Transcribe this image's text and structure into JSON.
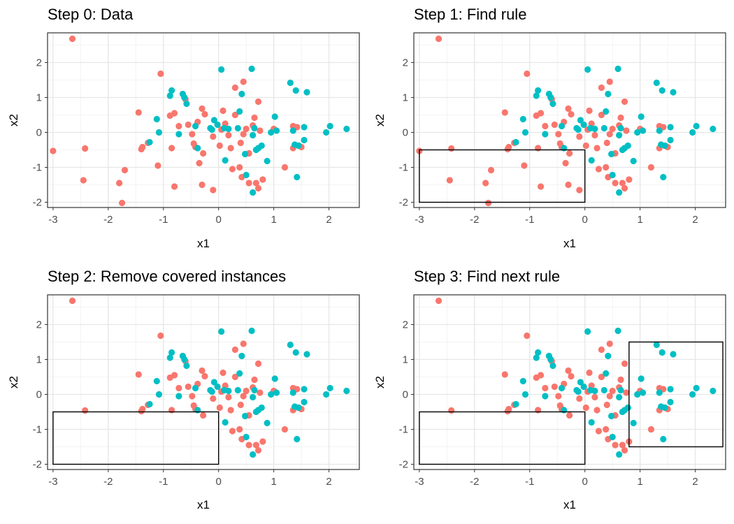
{
  "chart_data": [
    {
      "type": "scatter",
      "title": "Step 0: Data",
      "xlabel": "x1",
      "ylabel": "x2",
      "xlim": [
        -3.1,
        2.55
      ],
      "ylim": [
        -2.15,
        2.85
      ],
      "xticks": [
        -3,
        -2,
        -1,
        0,
        1,
        2
      ],
      "yticks": [
        -2,
        -1,
        0,
        1,
        2
      ],
      "grid": true,
      "rects": [],
      "show_removed": true
    },
    {
      "type": "scatter",
      "title": "Step 1: Find rule",
      "xlabel": "x1",
      "ylabel": "x2",
      "xlim": [
        -3.1,
        2.55
      ],
      "ylim": [
        -2.15,
        2.85
      ],
      "xticks": [
        -3,
        -2,
        -1,
        0,
        1,
        2
      ],
      "yticks": [
        -2,
        -1,
        0,
        1,
        2
      ],
      "grid": true,
      "rects": [
        {
          "x0": -3.0,
          "x1": 0.0,
          "y0": -2.0,
          "y1": -0.5
        }
      ],
      "show_removed": true
    },
    {
      "type": "scatter",
      "title": "Step 2: Remove covered instances",
      "xlabel": "x1",
      "ylabel": "x2",
      "xlim": [
        -3.1,
        2.55
      ],
      "ylim": [
        -2.15,
        2.85
      ],
      "xticks": [
        -3,
        -2,
        -1,
        0,
        1,
        2
      ],
      "yticks": [
        -2,
        -1,
        0,
        1,
        2
      ],
      "grid": true,
      "rects": [
        {
          "x0": -3.0,
          "x1": 0.0,
          "y0": -2.0,
          "y1": -0.5
        }
      ],
      "show_removed": false
    },
    {
      "type": "scatter",
      "title": "Step 3: Find next rule",
      "xlabel": "x1",
      "ylabel": "x2",
      "xlim": [
        -3.1,
        2.55
      ],
      "ylim": [
        -2.15,
        2.85
      ],
      "xticks": [
        -3,
        -2,
        -1,
        0,
        1,
        2
      ],
      "yticks": [
        -2,
        -1,
        0,
        1,
        2
      ],
      "grid": true,
      "rects": [
        {
          "x0": -3.0,
          "x1": 0.0,
          "y0": -2.0,
          "y1": -0.5
        },
        {
          "x0": 0.8,
          "x1": 2.5,
          "y0": -1.5,
          "y1": 1.5
        }
      ],
      "show_removed": false
    }
  ],
  "points": {
    "colors": {
      "salmon": "#f8766d",
      "teal": "#00bfc4"
    },
    "removed_salmon": [
      [
        -3.0,
        -0.53
      ],
      [
        -1.8,
        -1.45
      ],
      [
        -1.75,
        -2.02
      ],
      [
        -1.7,
        -1.08
      ],
      [
        -2.45,
        -1.37
      ],
      [
        -1.1,
        -0.95
      ],
      [
        -0.8,
        -1.55
      ],
      [
        -0.3,
        -1.5
      ],
      [
        -0.1,
        -1.65
      ],
      [
        -0.35,
        -0.88
      ]
    ],
    "salmon": [
      [
        -2.65,
        2.68
      ],
      [
        -2.42,
        -0.46
      ],
      [
        -1.45,
        0.57
      ],
      [
        -1.4,
        -0.48
      ],
      [
        -1.38,
        -0.42
      ],
      [
        -1.28,
        -0.3
      ],
      [
        -1.05,
        1.68
      ],
      [
        -0.88,
        0.48
      ],
      [
        -0.85,
        -0.45
      ],
      [
        -0.8,
        0.55
      ],
      [
        -0.72,
        0.18
      ],
      [
        -0.6,
        0.95
      ],
      [
        -0.55,
        0.22
      ],
      [
        -0.48,
        -0.05
      ],
      [
        -0.45,
        -0.32
      ],
      [
        -0.42,
        -0.42
      ],
      [
        -0.38,
        0.3
      ],
      [
        -0.3,
        0.68
      ],
      [
        -0.28,
        -0.6
      ],
      [
        -0.25,
        0.52
      ],
      [
        -0.1,
        -0.12
      ],
      [
        0.02,
        -0.38
      ],
      [
        0.05,
        0.08
      ],
      [
        0.08,
        0.62
      ],
      [
        0.12,
        0.25
      ],
      [
        0.18,
        -0.08
      ],
      [
        0.22,
        -0.45
      ],
      [
        0.25,
        -1.05
      ],
      [
        0.3,
        0.5
      ],
      [
        0.3,
        1.28
      ],
      [
        0.38,
        -1.0
      ],
      [
        0.4,
        -0.3
      ],
      [
        0.42,
        -1.28
      ],
      [
        0.45,
        -0.05
      ],
      [
        0.45,
        1.45
      ],
      [
        0.5,
        0.1
      ],
      [
        0.55,
        -0.6
      ],
      [
        0.55,
        -1.45
      ],
      [
        0.62,
        0.2
      ],
      [
        0.65,
        0.42
      ],
      [
        0.68,
        -1.45
      ],
      [
        0.72,
        0.88
      ],
      [
        0.72,
        -1.6
      ],
      [
        0.75,
        0.05
      ],
      [
        0.8,
        -1.35
      ],
      [
        1.0,
        0.1
      ],
      [
        1.2,
        -1.0
      ],
      [
        1.35,
        0.18
      ],
      [
        1.35,
        -0.45
      ],
      [
        1.42,
        0.15
      ],
      [
        1.45,
        -0.38
      ],
      [
        1.5,
        -0.42
      ]
    ],
    "teal": [
      [
        -1.25,
        -0.28
      ],
      [
        -1.12,
        0.38
      ],
      [
        -1.08,
        0.0
      ],
      [
        -0.88,
        1.05
      ],
      [
        -0.85,
        1.2
      ],
      [
        -0.72,
        -0.05
      ],
      [
        -0.65,
        1.1
      ],
      [
        -0.62,
        1.0
      ],
      [
        -0.58,
        0.82
      ],
      [
        -0.42,
        0.18
      ],
      [
        -0.38,
        -0.45
      ],
      [
        -0.15,
        0.12
      ],
      [
        -0.12,
        0.08
      ],
      [
        -0.08,
        0.35
      ],
      [
        -0.02,
        0.22
      ],
      [
        0.05,
        1.8
      ],
      [
        0.1,
        0.12
      ],
      [
        0.12,
        -0.8
      ],
      [
        0.18,
        0.1
      ],
      [
        0.35,
        0.12
      ],
      [
        0.38,
        0.6
      ],
      [
        0.42,
        1.1
      ],
      [
        0.48,
        -0.62
      ],
      [
        0.5,
        -1.22
      ],
      [
        0.6,
        1.82
      ],
      [
        0.62,
        -0.08
      ],
      [
        0.62,
        -1.72
      ],
      [
        0.65,
        0.12
      ],
      [
        0.68,
        -0.5
      ],
      [
        0.72,
        -0.45
      ],
      [
        0.78,
        -0.38
      ],
      [
        0.88,
        -0.82
      ],
      [
        0.95,
        0.0
      ],
      [
        1.02,
        0.45
      ],
      [
        1.05,
        0.05
      ],
      [
        1.3,
        1.42
      ],
      [
        1.35,
        0.05
      ],
      [
        1.38,
        -0.35
      ],
      [
        1.4,
        1.2
      ],
      [
        1.42,
        -1.28
      ],
      [
        1.45,
        -0.38
      ],
      [
        1.55,
        0.15
      ],
      [
        1.55,
        -0.22
      ],
      [
        1.6,
        1.15
      ],
      [
        1.95,
        0.0
      ],
      [
        2.02,
        0.18
      ],
      [
        2.32,
        0.1
      ]
    ]
  }
}
